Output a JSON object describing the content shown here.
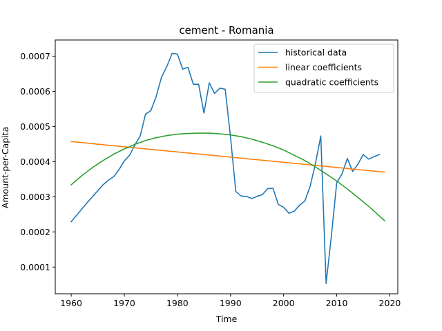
{
  "chart_data": {
    "type": "line",
    "title": "cement - Romania",
    "xlabel": "Time",
    "ylabel": "Amount-per-Capita",
    "xlim": [
      1957,
      2021.5
    ],
    "ylim": [
      2.4e-05,
      0.000746
    ],
    "xticks": [
      1960,
      1970,
      1980,
      1990,
      2000,
      2010,
      2020
    ],
    "yticks": [
      0.0001,
      0.0002,
      0.0003,
      0.0004,
      0.0005,
      0.0006,
      0.0007
    ],
    "ytick_labels": [
      "0.0001",
      "0.0002",
      "0.0003",
      "0.0004",
      "0.0005",
      "0.0006",
      "0.0007"
    ],
    "legend_position": "top-right",
    "series": [
      {
        "name": "historical data",
        "color": "#1f77b4",
        "x": [
          1960,
          1961,
          1962,
          1963,
          1964,
          1965,
          1966,
          1967,
          1968,
          1969,
          1970,
          1971,
          1972,
          1973,
          1974,
          1975,
          1976,
          1977,
          1978,
          1979,
          1980,
          1981,
          1982,
          1983,
          1984,
          1985,
          1986,
          1987,
          1988,
          1989,
          1990,
          1991,
          1992,
          1993,
          1994,
          1995,
          1996,
          1997,
          1998,
          1999,
          2000,
          2001,
          2002,
          2003,
          2004,
          2005,
          2006,
          2007,
          2008,
          2009,
          2010,
          2011,
          2012,
          2013,
          2014,
          2015,
          2016,
          2017,
          2018
        ],
        "y": [
          0.000229,
          0.000247,
          0.000265,
          0.000283,
          0.0003,
          0.000317,
          0.000334,
          0.000347,
          0.000357,
          0.000377,
          0.000402,
          0.000418,
          0.000448,
          0.000473,
          0.000535,
          0.000545,
          0.000585,
          0.00064,
          0.00067,
          0.000708,
          0.000706,
          0.000663,
          0.000668,
          0.00062,
          0.00062,
          0.000538,
          0.000624,
          0.000594,
          0.000609,
          0.000606,
          0.00047,
          0.000315,
          0.000302,
          0.000301,
          0.000295,
          0.000301,
          0.000306,
          0.000323,
          0.000324,
          0.000278,
          0.00027,
          0.000253,
          0.000259,
          0.000276,
          0.000288,
          0.00033,
          0.000395,
          0.000473,
          5.3e-05,
          0.00019,
          0.00034,
          0.000365,
          0.000409,
          0.000372,
          0.000393,
          0.00042,
          0.000407,
          0.000414,
          0.00042
        ]
      },
      {
        "name": "linear coefficients",
        "color": "#ff7f0e",
        "x": [
          1960,
          2019
        ],
        "y": [
          0.000457,
          0.00037
        ]
      },
      {
        "name": "quadratic coefficients",
        "color": "#2ca02c",
        "x": [
          1960,
          1962,
          1964,
          1966,
          1968,
          1970,
          1972,
          1974,
          1976,
          1978,
          1980,
          1982,
          1984,
          1986,
          1988,
          1990,
          1992,
          1994,
          1996,
          1998,
          2000,
          2002,
          2004,
          2006,
          2008,
          2010,
          2012,
          2014,
          2016,
          2019
        ],
        "y": [
          0.000334,
          0.00036,
          0.000383,
          0.000403,
          0.000421,
          0.000436,
          0.000449,
          0.00046,
          0.000468,
          0.000474,
          0.000478,
          0.00048,
          0.000481,
          0.000481,
          0.000479,
          0.000476,
          0.000471,
          0.000464,
          0.000455,
          0.000445,
          0.000433,
          0.000418,
          0.000403,
          0.000385,
          0.000365,
          0.000345,
          0.000322,
          0.000298,
          0.000273,
          0.000232
        ]
      }
    ]
  }
}
